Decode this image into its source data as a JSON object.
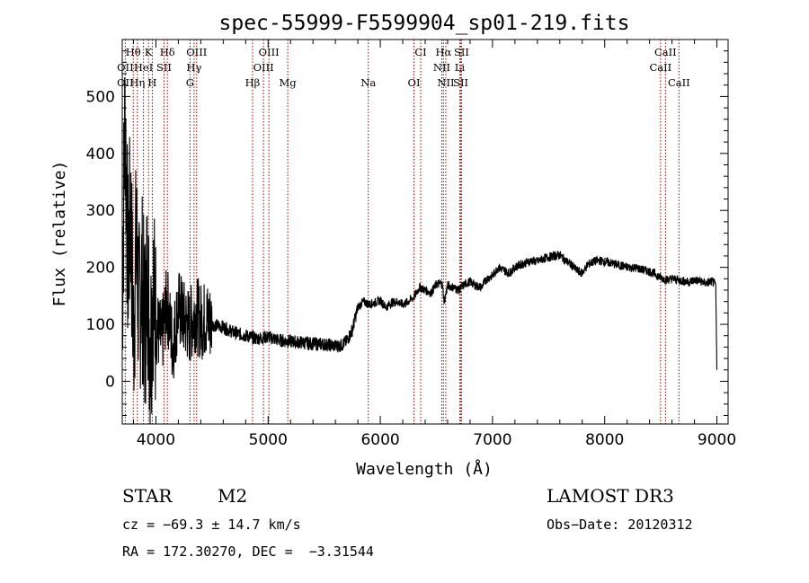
{
  "chart_data": {
    "type": "line",
    "title": "spec-55999-F5599904_sp01-219.fits",
    "xlabel": "Wavelength (Å)",
    "ylabel": "Flux (relative)",
    "xlim": [
      3700,
      9100
    ],
    "ylim": [
      -75,
      600
    ],
    "xticks": [
      4000,
      5000,
      6000,
      7000,
      8000,
      9000
    ],
    "yticks": [
      0,
      100,
      200,
      300,
      400,
      500
    ],
    "grid": false,
    "series": [
      {
        "name": "spectrum",
        "x": [
          3700,
          3725,
          3750,
          3775,
          3800,
          3825,
          3850,
          3875,
          3900,
          3925,
          3950,
          3975,
          4000,
          4050,
          4100,
          4150,
          4200,
          4250,
          4300,
          4350,
          4400,
          4450,
          4500,
          4600,
          4700,
          4800,
          4900,
          5000,
          5100,
          5200,
          5300,
          5400,
          5500,
          5600,
          5650,
          5700,
          5750,
          5800,
          5850,
          5900,
          5950,
          6000,
          6050,
          6100,
          6150,
          6200,
          6250,
          6300,
          6350,
          6400,
          6450,
          6500,
          6550,
          6570,
          6600,
          6650,
          6700,
          6750,
          6800,
          6850,
          6900,
          6950,
          7000,
          7050,
          7100,
          7150,
          7200,
          7250,
          7300,
          7350,
          7400,
          7450,
          7500,
          7550,
          7600,
          7650,
          7700,
          7750,
          7800,
          7850,
          7900,
          7950,
          8000,
          8050,
          8100,
          8150,
          8200,
          8250,
          8300,
          8350,
          8400,
          8450,
          8500,
          8550,
          8600,
          8650,
          8700,
          8750,
          8800,
          8850,
          8900,
          8950,
          8990,
          9000
        ],
        "values": [
          130,
          480,
          200,
          300,
          80,
          250,
          120,
          180,
          90,
          190,
          60,
          170,
          100,
          70,
          140,
          60,
          130,
          110,
          95,
          120,
          105,
          110,
          100,
          95,
          85,
          80,
          75,
          78,
          72,
          70,
          68,
          66,
          65,
          62,
          63,
          70,
          90,
          130,
          140,
          135,
          138,
          142,
          130,
          138,
          140,
          135,
          140,
          148,
          165,
          160,
          155,
          170,
          172,
          140,
          168,
          165,
          160,
          170,
          175,
          168,
          165,
          180,
          185,
          200,
          195,
          190,
          200,
          205,
          208,
          212,
          210,
          215,
          218,
          220,
          222,
          212,
          205,
          195,
          190,
          205,
          210,
          212,
          210,
          208,
          205,
          203,
          200,
          200,
          198,
          195,
          193,
          188,
          182,
          178,
          180,
          178,
          176,
          174,
          178,
          176,
          172,
          175,
          170,
          20
        ]
      }
    ],
    "line_ids": {
      "row1": [
        {
          "label": "Hθ",
          "wl": 3798
        },
        {
          "label": "K",
          "wl": 3934
        },
        {
          "label": "Hδ",
          "wl": 4102
        },
        {
          "label": "OIII",
          "wl": 4363
        },
        {
          "label": "OIII",
          "wl": 5007
        },
        {
          "label": "CI",
          "wl": 6360
        },
        {
          "label": "Hα",
          "wl": 6563
        },
        {
          "label": "SII",
          "wl": 6724
        },
        {
          "label": "CaII",
          "wl": 8542
        }
      ],
      "row2": [
        {
          "label": "OII",
          "wl": 3727
        },
        {
          "label": "HeI",
          "wl": 3889
        },
        {
          "label": "SII",
          "wl": 4072
        },
        {
          "label": "Hγ",
          "wl": 4340
        },
        {
          "label": "OIII",
          "wl": 4959
        },
        {
          "label": "NII",
          "wl": 6548
        },
        {
          "label": "Li",
          "wl": 6708
        },
        {
          "label": "CaII",
          "wl": 8498
        }
      ],
      "row3": [
        {
          "label": "OII",
          "wl": 3727
        },
        {
          "label": "Hη",
          "wl": 3835
        },
        {
          "label": "H",
          "wl": 3968
        },
        {
          "label": "G",
          "wl": 4304
        },
        {
          "label": "Hβ",
          "wl": 4861
        },
        {
          "label": "Mg",
          "wl": 5175
        },
        {
          "label": "Na",
          "wl": 5893
        },
        {
          "label": "OI",
          "wl": 6300
        },
        {
          "label": "NII",
          "wl": 6584
        },
        {
          "label": "SII",
          "wl": 6717
        },
        {
          "label": "CaII",
          "wl": 8662
        }
      ],
      "na_label_row": 2
    },
    "line_color": "#a00000"
  },
  "info": {
    "object_class": "STAR",
    "subclass": "M2",
    "survey": "LAMOST DR3",
    "redshift_text": "cz = −69.3 ± 14.7 km/s",
    "obs_date": "Obs−Date: 20120312",
    "coords": "RA = 172.30270, DEC =  −3.31544"
  }
}
